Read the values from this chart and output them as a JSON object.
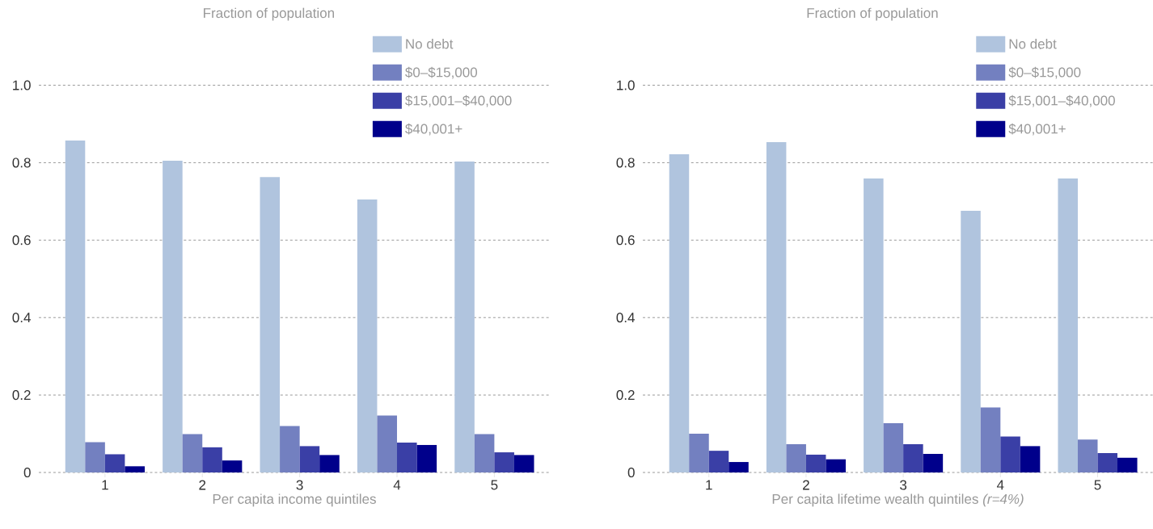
{
  "chart_data": [
    {
      "type": "bar",
      "ylabel": "Fraction of population",
      "xlabel": "Per capita income quintiles",
      "categories": [
        "1",
        "2",
        "3",
        "4",
        "5"
      ],
      "series": [
        {
          "name": "No debt",
          "color": "#b0c4de",
          "values": [
            0.857,
            0.805,
            0.763,
            0.705,
            0.803
          ]
        },
        {
          "name": "$0–$15,000",
          "color": "#7380c0",
          "values": [
            0.078,
            0.099,
            0.12,
            0.147,
            0.099
          ]
        },
        {
          "name": "$15,001–$40,000",
          "color": "#3a3fa6",
          "values": [
            0.047,
            0.065,
            0.068,
            0.077,
            0.052
          ]
        },
        {
          "name": "$40,001+",
          "color": "#00008b",
          "values": [
            0.016,
            0.031,
            0.045,
            0.071,
            0.045
          ]
        }
      ],
      "ylim": [
        0,
        1.12
      ],
      "yticks": [
        0,
        0.2,
        0.4,
        0.6,
        0.8,
        {
          "value": 1,
          "label": "1.0"
        }
      ],
      "grid": "y",
      "legend": "top right"
    },
    {
      "type": "bar",
      "ylabel": "Fraction of population",
      "xlabel": "Per capita lifetime wealth quintiles *(r=4%)*",
      "categories": [
        "1",
        "2",
        "3",
        "4",
        "5"
      ],
      "series": [
        {
          "name": "No debt",
          "color": "#b0c4de",
          "values": [
            0.822,
            0.853,
            0.759,
            0.676,
            0.759
          ]
        },
        {
          "name": "$0–$15,000",
          "color": "#7380c0",
          "values": [
            0.1,
            0.073,
            0.127,
            0.168,
            0.085
          ]
        },
        {
          "name": "$15,001–$40,000",
          "color": "#3a3fa6",
          "values": [
            0.056,
            0.046,
            0.073,
            0.093,
            0.05
          ]
        },
        {
          "name": "$40,001+",
          "color": "#00008b",
          "values": [
            0.027,
            0.034,
            0.048,
            0.068,
            0.038
          ]
        }
      ],
      "ylim": [
        0,
        1.12
      ],
      "yticks": [
        0,
        0.2,
        0.4,
        0.6,
        0.8,
        {
          "value": 1,
          "label": "1.0"
        }
      ],
      "grid": "y",
      "legend": "top right"
    }
  ]
}
